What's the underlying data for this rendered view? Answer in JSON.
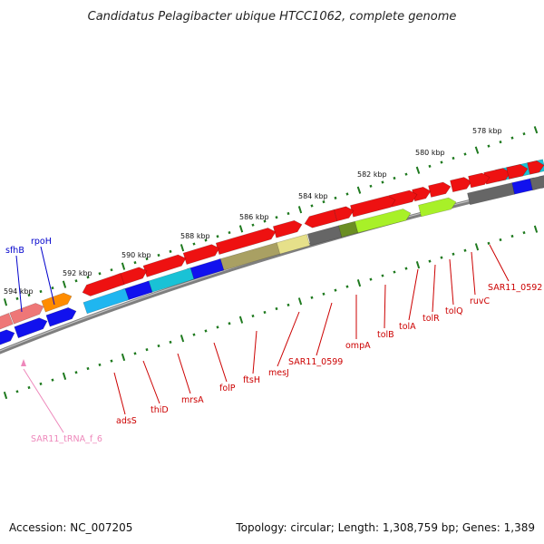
{
  "title": "Candidatus Pelagibacter ubique HTCC1062, complete genome",
  "footer": {
    "accession": "Accession: NC_007205",
    "summary": "Topology: circular; Length: 1,308,759 bp; Genes: 1,389"
  },
  "colors": {
    "background": "#ffffff",
    "backbone": "#7f7f7f",
    "tick": "#1f7a1f",
    "label_red": "#cc0000",
    "label_blue": "#0000cc",
    "label_pink": "#ee88bb",
    "gene_red": "#ee1111",
    "gene_blue": "#1111ee",
    "gene_cyan": "#19c2d6",
    "gene_skyblue": "#1fb6f0",
    "gene_salmon": "#ee7777",
    "gene_orange": "#ff8c00",
    "gene_olive": "#a9a063",
    "gene_khaki": "#e6e08a",
    "gene_darkgray": "#666666",
    "gene_darkolive": "#6b8e23",
    "gene_lime": "#a8f028"
  },
  "ruler": {
    "labels": [
      "594 kbp",
      "592 kbp",
      "590 kbp",
      "588 kbp",
      "586 kbp",
      "584 kbp",
      "582 kbp",
      "580 kbp",
      "578 kbp"
    ]
  },
  "genes": [
    {
      "name": "sfhB",
      "color": "label_blue"
    },
    {
      "name": "rpoH",
      "color": "label_blue"
    },
    {
      "name": "SAR11_tRNA_f_6",
      "color": "label_pink"
    },
    {
      "name": "adsS",
      "color": "label_red"
    },
    {
      "name": "thiD",
      "color": "label_red"
    },
    {
      "name": "mrsA",
      "color": "label_red"
    },
    {
      "name": "folP",
      "color": "label_red"
    },
    {
      "name": "ftsH",
      "color": "label_red"
    },
    {
      "name": "mesJ",
      "color": "label_red"
    },
    {
      "name": "SAR11_0599",
      "color": "label_red"
    },
    {
      "name": "ompA",
      "color": "label_red"
    },
    {
      "name": "tolB",
      "color": "label_red"
    },
    {
      "name": "tolA",
      "color": "label_red"
    },
    {
      "name": "tolR",
      "color": "label_red"
    },
    {
      "name": "tolQ",
      "color": "label_red"
    },
    {
      "name": "ruvC",
      "color": "label_red"
    },
    {
      "name": "SAR11_0592",
      "color": "label_red"
    }
  ]
}
